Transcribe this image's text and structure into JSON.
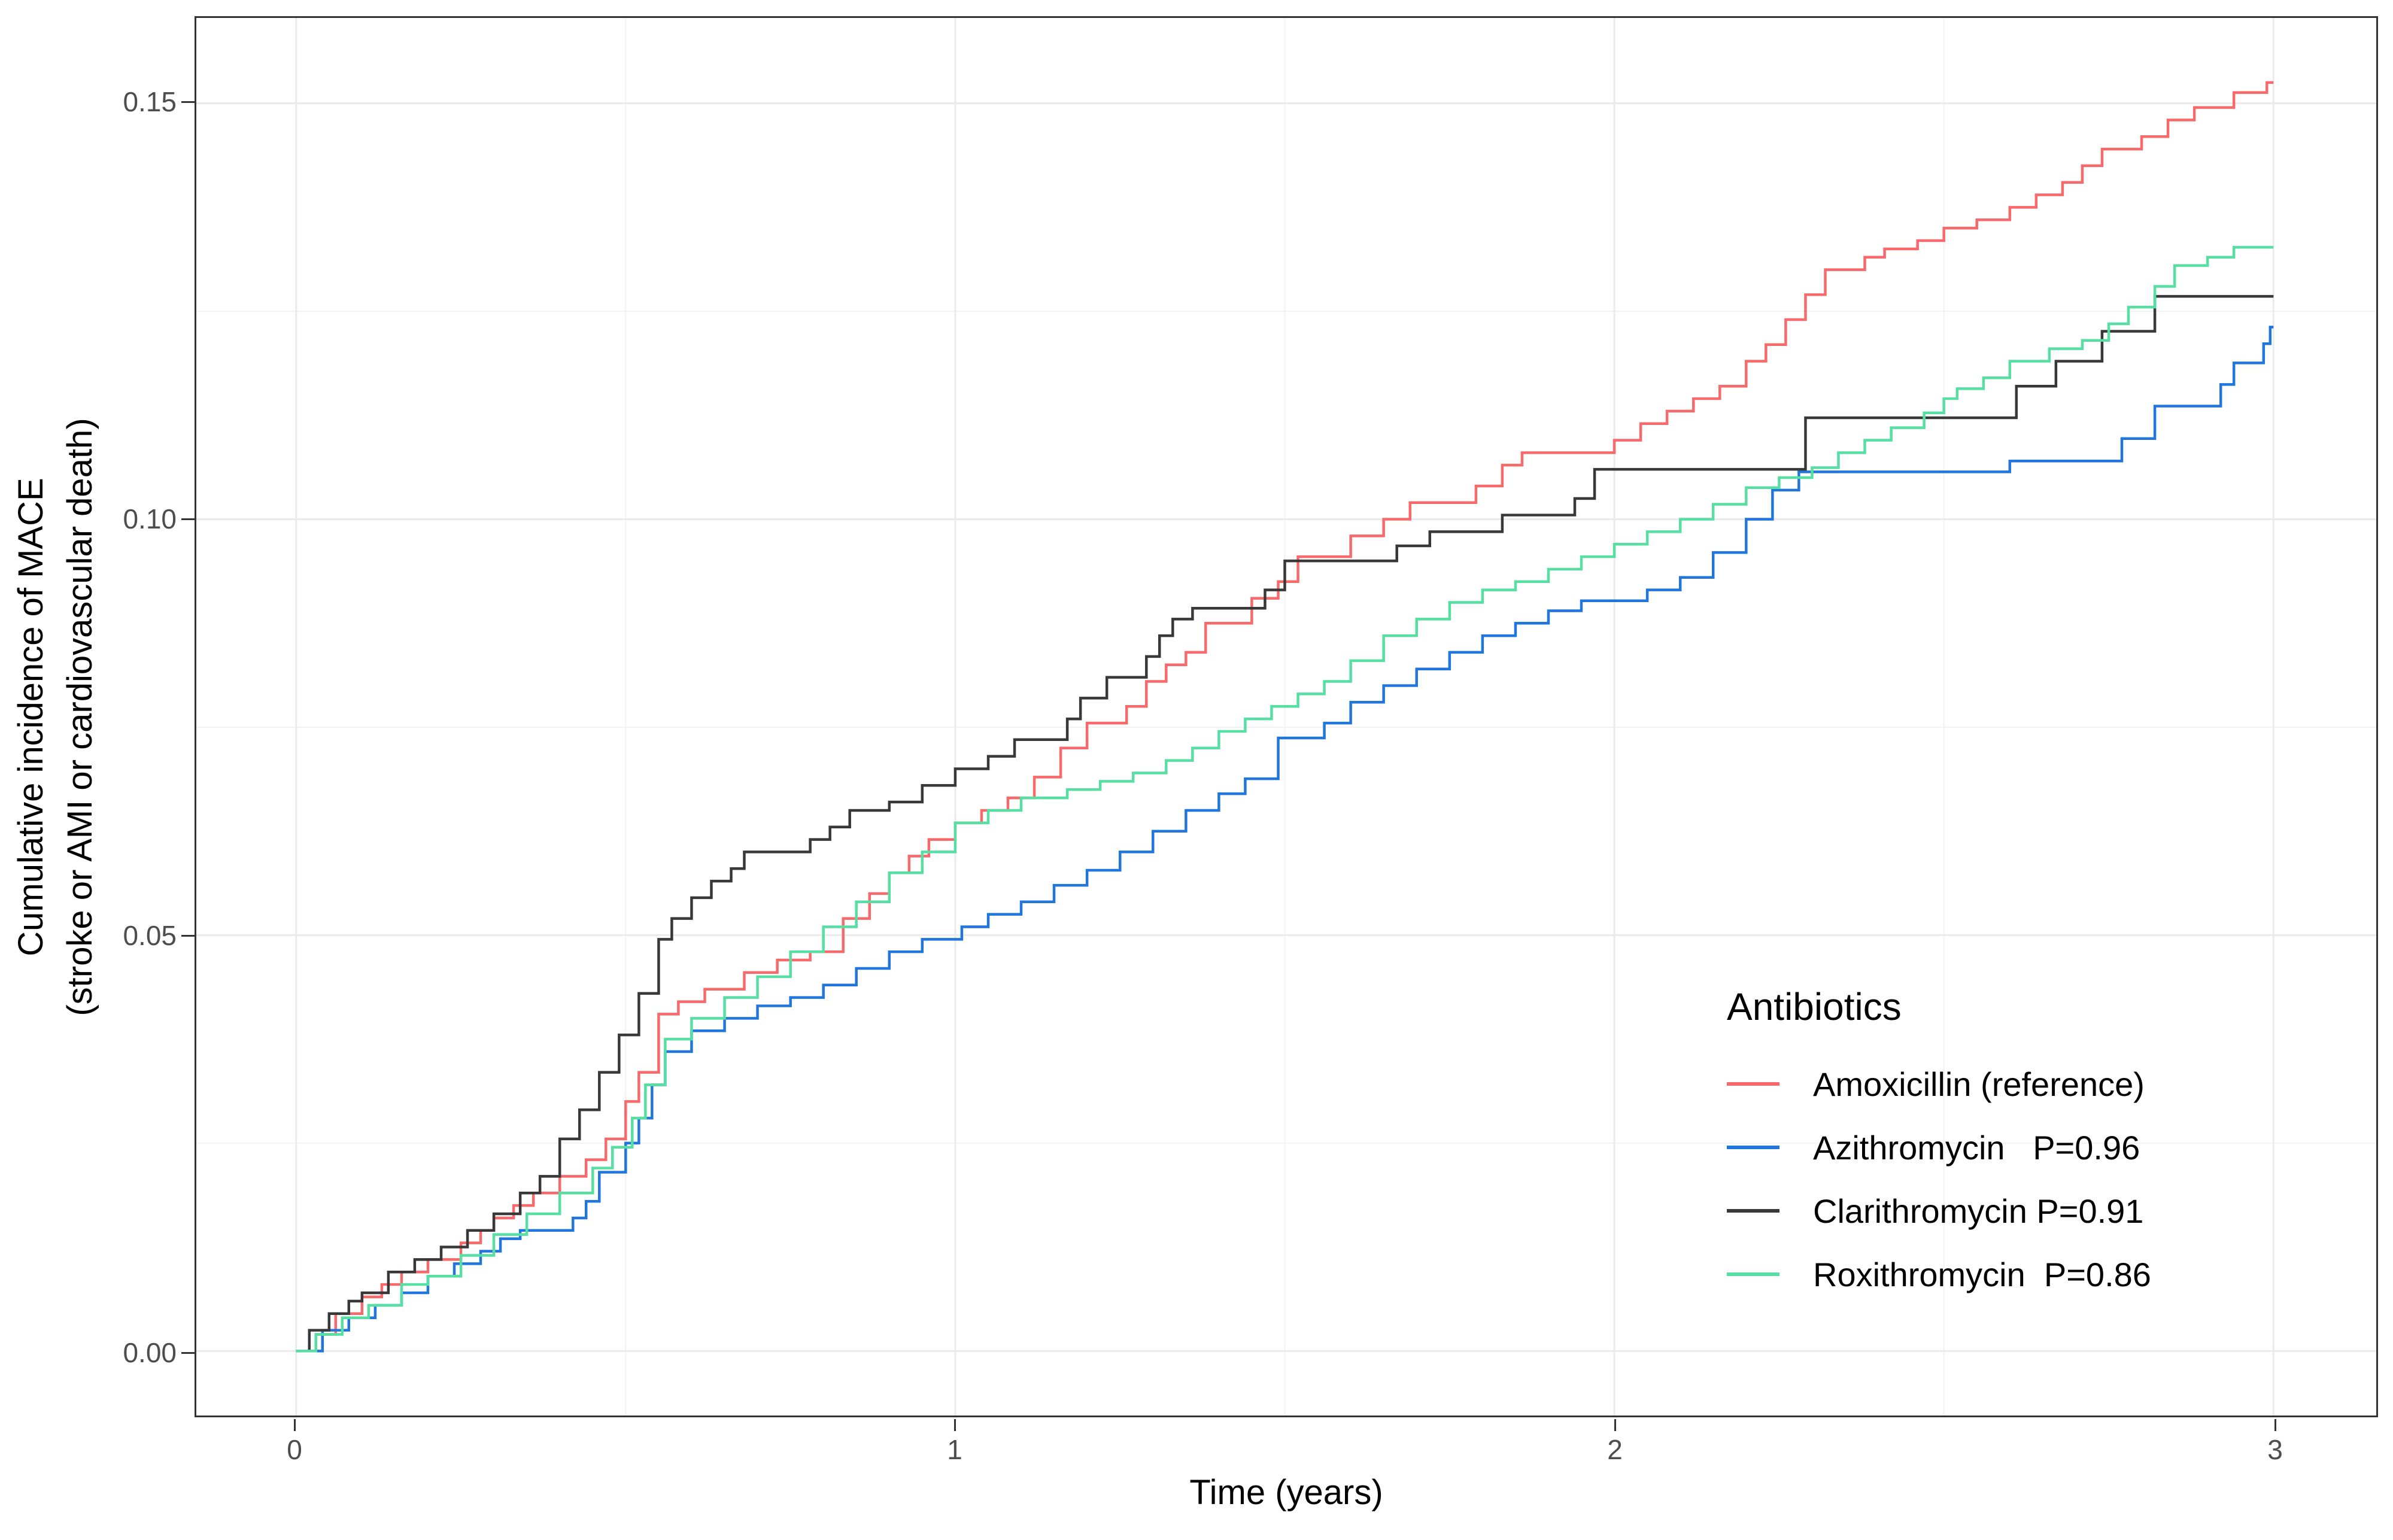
{
  "figure": {
    "x_axis": {
      "title": "Time (years)",
      "ticks": [
        {
          "value": 0,
          "label": "0"
        },
        {
          "value": 1,
          "label": "1"
        },
        {
          "value": 2,
          "label": "2"
        },
        {
          "value": 3,
          "label": "3"
        }
      ]
    },
    "y_axis": {
      "title_line1": "Cumulative incidence of MACE",
      "title_line2": "(stroke or AMI or cardiovascular death)",
      "ticks": [
        {
          "value": 0.0,
          "label": "0.00"
        },
        {
          "value": 0.05,
          "label": "0.05"
        },
        {
          "value": 0.1,
          "label": "0.10"
        },
        {
          "value": 0.15,
          "label": "0.15"
        }
      ]
    },
    "legend": {
      "title": "Antibiotics",
      "items": [
        {
          "label": "Amoxicillin (reference)",
          "color": "#F8696B"
        },
        {
          "label": "Azithromycin   P=0.96",
          "color": "#2176DE"
        },
        {
          "label": "Clarithromycin P=0.91",
          "color": "#383838"
        },
        {
          "label": "Roxithromycin  P=0.86",
          "color": "#57DFA3"
        }
      ]
    },
    "colors": {
      "grid_major": "#EBEBEB",
      "grid_minor": "#F2F2F2",
      "panel_border": "#333333",
      "tick_label": "#4D4D4D"
    }
  },
  "chart_data": {
    "type": "line",
    "subtype": "step-cumulative-incidence",
    "title": "",
    "xlabel": "Time (years)",
    "ylabel": "Cumulative incidence of MACE (stroke or AMI or cardiovascular death)",
    "xlim": [
      -0.15,
      3.16
    ],
    "ylim": [
      -0.008,
      0.16
    ],
    "x_major_ticks": [
      0,
      1,
      2,
      3
    ],
    "y_major_ticks": [
      0.0,
      0.05,
      0.1,
      0.15
    ],
    "x_minor_ticks": [
      0.5,
      1.5,
      2.5
    ],
    "y_minor_ticks": [
      0.025,
      0.075,
      0.125
    ],
    "grid": true,
    "legend_position": "inside-right",
    "series": [
      {
        "name": "Amoxicillin (reference)",
        "p_value": null,
        "color": "#F8696B",
        "points": [
          [
            0,
            0
          ],
          [
            0.03,
            0.002
          ],
          [
            0.06,
            0.0045
          ],
          [
            0.1,
            0.0065
          ],
          [
            0.13,
            0.008
          ],
          [
            0.16,
            0.0095
          ],
          [
            0.2,
            0.011
          ],
          [
            0.25,
            0.013
          ],
          [
            0.28,
            0.0145
          ],
          [
            0.3,
            0.016
          ],
          [
            0.33,
            0.0175
          ],
          [
            0.36,
            0.019
          ],
          [
            0.4,
            0.021
          ],
          [
            0.44,
            0.023
          ],
          [
            0.47,
            0.0255
          ],
          [
            0.5,
            0.03
          ],
          [
            0.52,
            0.0335
          ],
          [
            0.55,
            0.0405
          ],
          [
            0.58,
            0.042
          ],
          [
            0.62,
            0.0435
          ],
          [
            0.68,
            0.0455
          ],
          [
            0.73,
            0.047
          ],
          [
            0.78,
            0.048
          ],
          [
            0.83,
            0.052
          ],
          [
            0.87,
            0.055
          ],
          [
            0.9,
            0.0575
          ],
          [
            0.93,
            0.0595
          ],
          [
            0.96,
            0.0615
          ],
          [
            1,
            0.0635
          ],
          [
            1.04,
            0.065
          ],
          [
            1.08,
            0.0665
          ],
          [
            1.12,
            0.069
          ],
          [
            1.16,
            0.0725
          ],
          [
            1.2,
            0.0755
          ],
          [
            1.26,
            0.0775
          ],
          [
            1.29,
            0.0805
          ],
          [
            1.32,
            0.0825
          ],
          [
            1.35,
            0.084
          ],
          [
            1.38,
            0.0875
          ],
          [
            1.45,
            0.0905
          ],
          [
            1.49,
            0.0925
          ],
          [
            1.52,
            0.0955
          ],
          [
            1.6,
            0.098
          ],
          [
            1.65,
            0.1
          ],
          [
            1.69,
            0.102
          ],
          [
            1.79,
            0.104
          ],
          [
            1.83,
            0.1065
          ],
          [
            1.86,
            0.108
          ],
          [
            2,
            0.1095
          ],
          [
            2.04,
            0.1115
          ],
          [
            2.08,
            0.113
          ],
          [
            2.12,
            0.1145
          ],
          [
            2.16,
            0.116
          ],
          [
            2.2,
            0.119
          ],
          [
            2.23,
            0.121
          ],
          [
            2.26,
            0.124
          ],
          [
            2.29,
            0.127
          ],
          [
            2.32,
            0.13
          ],
          [
            2.38,
            0.1315
          ],
          [
            2.41,
            0.1325
          ],
          [
            2.46,
            0.1335
          ],
          [
            2.5,
            0.135
          ],
          [
            2.55,
            0.136
          ],
          [
            2.6,
            0.1375
          ],
          [
            2.64,
            0.139
          ],
          [
            2.68,
            0.1405
          ],
          [
            2.71,
            0.1425
          ],
          [
            2.74,
            0.1445
          ],
          [
            2.8,
            0.146
          ],
          [
            2.84,
            0.148
          ],
          [
            2.88,
            0.1495
          ],
          [
            2.94,
            0.1513
          ],
          [
            2.99,
            0.1525
          ],
          [
            3,
            0.1525
          ]
        ]
      },
      {
        "name": "Azithromycin",
        "p_value": 0.96,
        "color": "#2176DE",
        "points": [
          [
            0,
            0
          ],
          [
            0.04,
            0.0025
          ],
          [
            0.08,
            0.004
          ],
          [
            0.12,
            0.0055
          ],
          [
            0.16,
            0.007
          ],
          [
            0.2,
            0.009
          ],
          [
            0.24,
            0.0105
          ],
          [
            0.28,
            0.012
          ],
          [
            0.31,
            0.0135
          ],
          [
            0.34,
            0.0145
          ],
          [
            0.42,
            0.016
          ],
          [
            0.44,
            0.018
          ],
          [
            0.46,
            0.0215
          ],
          [
            0.5,
            0.025
          ],
          [
            0.52,
            0.028
          ],
          [
            0.54,
            0.032
          ],
          [
            0.56,
            0.036
          ],
          [
            0.6,
            0.0385
          ],
          [
            0.65,
            0.04
          ],
          [
            0.7,
            0.0415
          ],
          [
            0.75,
            0.0425
          ],
          [
            0.8,
            0.044
          ],
          [
            0.85,
            0.046
          ],
          [
            0.9,
            0.048
          ],
          [
            0.95,
            0.0495
          ],
          [
            1.01,
            0.051
          ],
          [
            1.05,
            0.0525
          ],
          [
            1.1,
            0.054
          ],
          [
            1.15,
            0.056
          ],
          [
            1.2,
            0.0578
          ],
          [
            1.25,
            0.06
          ],
          [
            1.3,
            0.0625
          ],
          [
            1.35,
            0.065
          ],
          [
            1.4,
            0.067
          ],
          [
            1.44,
            0.0688
          ],
          [
            1.49,
            0.0737
          ],
          [
            1.56,
            0.0755
          ],
          [
            1.6,
            0.078
          ],
          [
            1.65,
            0.08
          ],
          [
            1.7,
            0.082
          ],
          [
            1.75,
            0.084
          ],
          [
            1.8,
            0.086
          ],
          [
            1.85,
            0.0875
          ],
          [
            1.9,
            0.089
          ],
          [
            1.95,
            0.0902
          ],
          [
            2.05,
            0.0915
          ],
          [
            2.1,
            0.093
          ],
          [
            2.15,
            0.096
          ],
          [
            2.2,
            0.1
          ],
          [
            2.24,
            0.1035
          ],
          [
            2.28,
            0.1057
          ],
          [
            2.6,
            0.107
          ],
          [
            2.77,
            0.1097
          ],
          [
            2.82,
            0.1136
          ],
          [
            2.92,
            0.1162
          ],
          [
            2.94,
            0.1188
          ],
          [
            2.985,
            0.1211
          ],
          [
            2.995,
            0.1231
          ],
          [
            3,
            0.1231
          ]
        ]
      },
      {
        "name": "Clarithromycin",
        "p_value": 0.91,
        "color": "#383838",
        "points": [
          [
            0,
            0
          ],
          [
            0.02,
            0.0025
          ],
          [
            0.05,
            0.0045
          ],
          [
            0.08,
            0.006
          ],
          [
            0.1,
            0.007
          ],
          [
            0.14,
            0.0095
          ],
          [
            0.18,
            0.011
          ],
          [
            0.22,
            0.0125
          ],
          [
            0.26,
            0.0145
          ],
          [
            0.3,
            0.0165
          ],
          [
            0.34,
            0.019
          ],
          [
            0.37,
            0.021
          ],
          [
            0.4,
            0.0255
          ],
          [
            0.43,
            0.029
          ],
          [
            0.46,
            0.0335
          ],
          [
            0.49,
            0.038
          ],
          [
            0.52,
            0.043
          ],
          [
            0.55,
            0.0495
          ],
          [
            0.57,
            0.052
          ],
          [
            0.6,
            0.0545
          ],
          [
            0.63,
            0.0565
          ],
          [
            0.66,
            0.058
          ],
          [
            0.68,
            0.06
          ],
          [
            0.78,
            0.0615
          ],
          [
            0.81,
            0.063
          ],
          [
            0.84,
            0.065
          ],
          [
            0.9,
            0.066
          ],
          [
            0.95,
            0.068
          ],
          [
            1,
            0.07
          ],
          [
            1.05,
            0.0715
          ],
          [
            1.09,
            0.0735
          ],
          [
            1.17,
            0.076
          ],
          [
            1.19,
            0.0785
          ],
          [
            1.23,
            0.081
          ],
          [
            1.29,
            0.0835
          ],
          [
            1.31,
            0.086
          ],
          [
            1.33,
            0.088
          ],
          [
            1.36,
            0.0893
          ],
          [
            1.47,
            0.0915
          ],
          [
            1.5,
            0.095
          ],
          [
            1.67,
            0.0968
          ],
          [
            1.72,
            0.0985
          ],
          [
            1.83,
            0.1005
          ],
          [
            1.94,
            0.1025
          ],
          [
            1.97,
            0.106
          ],
          [
            2.29,
            0.1122
          ],
          [
            2.61,
            0.116
          ],
          [
            2.67,
            0.119
          ],
          [
            2.74,
            0.1226
          ],
          [
            2.82,
            0.1268
          ],
          [
            3,
            0.1268
          ]
        ]
      },
      {
        "name": "Roxithromycin",
        "p_value": 0.86,
        "color": "#57DFA3",
        "points": [
          [
            0,
            0
          ],
          [
            0.03,
            0.002
          ],
          [
            0.07,
            0.004
          ],
          [
            0.11,
            0.0055
          ],
          [
            0.16,
            0.008
          ],
          [
            0.2,
            0.009
          ],
          [
            0.25,
            0.0115
          ],
          [
            0.3,
            0.014
          ],
          [
            0.35,
            0.0165
          ],
          [
            0.4,
            0.019
          ],
          [
            0.45,
            0.022
          ],
          [
            0.48,
            0.0245
          ],
          [
            0.51,
            0.028
          ],
          [
            0.53,
            0.032
          ],
          [
            0.56,
            0.0375
          ],
          [
            0.6,
            0.04
          ],
          [
            0.65,
            0.0425
          ],
          [
            0.7,
            0.045
          ],
          [
            0.75,
            0.048
          ],
          [
            0.8,
            0.051
          ],
          [
            0.85,
            0.054
          ],
          [
            0.9,
            0.0575
          ],
          [
            0.95,
            0.06
          ],
          [
            1,
            0.0635
          ],
          [
            1.05,
            0.065
          ],
          [
            1.1,
            0.0665
          ],
          [
            1.17,
            0.0675
          ],
          [
            1.22,
            0.0685
          ],
          [
            1.27,
            0.0695
          ],
          [
            1.32,
            0.071
          ],
          [
            1.36,
            0.0725
          ],
          [
            1.4,
            0.0745
          ],
          [
            1.44,
            0.076
          ],
          [
            1.48,
            0.0775
          ],
          [
            1.52,
            0.079
          ],
          [
            1.56,
            0.0805
          ],
          [
            1.6,
            0.083
          ],
          [
            1.65,
            0.086
          ],
          [
            1.7,
            0.088
          ],
          [
            1.75,
            0.09
          ],
          [
            1.8,
            0.0915
          ],
          [
            1.85,
            0.0925
          ],
          [
            1.9,
            0.094
          ],
          [
            1.95,
            0.0955
          ],
          [
            2,
            0.097
          ],
          [
            2.05,
            0.0985
          ],
          [
            2.1,
            0.1
          ],
          [
            2.15,
            0.1018
          ],
          [
            2.2,
            0.1038
          ],
          [
            2.25,
            0.105
          ],
          [
            2.3,
            0.1062
          ],
          [
            2.34,
            0.108
          ],
          [
            2.38,
            0.1095
          ],
          [
            2.42,
            0.111
          ],
          [
            2.47,
            0.1128
          ],
          [
            2.5,
            0.1145
          ],
          [
            2.52,
            0.1157
          ],
          [
            2.56,
            0.117
          ],
          [
            2.6,
            0.119
          ],
          [
            2.66,
            0.1205
          ],
          [
            2.71,
            0.1215
          ],
          [
            2.75,
            0.1235
          ],
          [
            2.78,
            0.1255
          ],
          [
            2.82,
            0.128
          ],
          [
            2.85,
            0.1305
          ],
          [
            2.9,
            0.1315
          ],
          [
            2.94,
            0.1327
          ],
          [
            3,
            0.1327
          ]
        ]
      }
    ]
  }
}
